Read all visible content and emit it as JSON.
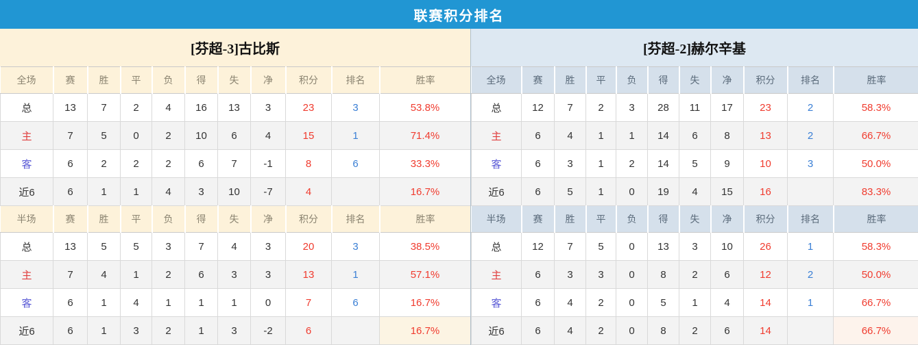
{
  "header": {
    "title": "联赛积分排名"
  },
  "columns": [
    "赛",
    "胜",
    "平",
    "负",
    "得",
    "失",
    "净",
    "积分",
    "排名",
    "胜率"
  ],
  "colors": {
    "topbar_blue": "#2196d3",
    "left_theme_cream": "#fdf2da",
    "right_theme_blue": "#dde8f2",
    "points_red": "#f03b2e",
    "rank_blue": "#3a7fd5",
    "home_label_red": "#e03e3e",
    "away_label_blue": "#5b5bd6"
  },
  "tables": [
    {
      "title": "[芬超-3]古比斯",
      "sections": [
        {
          "label": "全场",
          "rows": [
            {
              "label": "总",
              "type": "total",
              "stats": [
                "13",
                "7",
                "2",
                "4",
                "16",
                "13",
                "3"
              ],
              "points": "23",
              "rank": "3",
              "rate": "53.8%"
            },
            {
              "label": "主",
              "type": "home",
              "stats": [
                "7",
                "5",
                "0",
                "2",
                "10",
                "6",
                "4"
              ],
              "points": "15",
              "rank": "1",
              "rate": "71.4%"
            },
            {
              "label": "客",
              "type": "away",
              "stats": [
                "6",
                "2",
                "2",
                "2",
                "6",
                "7",
                "-1"
              ],
              "points": "8",
              "rank": "6",
              "rate": "33.3%"
            },
            {
              "label": "近6",
              "type": "recent6",
              "stats": [
                "6",
                "1",
                "1",
                "4",
                "3",
                "10",
                "-7"
              ],
              "points": "4",
              "rank": "",
              "rate": "16.7%"
            }
          ]
        },
        {
          "label": "半场",
          "rows": [
            {
              "label": "总",
              "type": "total",
              "stats": [
                "13",
                "5",
                "5",
                "3",
                "7",
                "4",
                "3"
              ],
              "points": "20",
              "rank": "3",
              "rate": "38.5%"
            },
            {
              "label": "主",
              "type": "home",
              "stats": [
                "7",
                "4",
                "1",
                "2",
                "6",
                "3",
                "3"
              ],
              "points": "13",
              "rank": "1",
              "rate": "57.1%"
            },
            {
              "label": "客",
              "type": "away",
              "stats": [
                "6",
                "1",
                "4",
                "1",
                "1",
                "1",
                "0"
              ],
              "points": "7",
              "rank": "6",
              "rate": "16.7%"
            },
            {
              "label": "近6",
              "type": "recent6",
              "stats": [
                "6",
                "1",
                "3",
                "2",
                "1",
                "3",
                "-2"
              ],
              "points": "6",
              "rank": "",
              "rate": "16.7%",
              "rate_highlight": true
            }
          ]
        }
      ]
    },
    {
      "title": "[芬超-2]赫尔辛基",
      "sections": [
        {
          "label": "全场",
          "rows": [
            {
              "label": "总",
              "type": "total",
              "stats": [
                "12",
                "7",
                "2",
                "3",
                "28",
                "11",
                "17"
              ],
              "points": "23",
              "rank": "2",
              "rate": "58.3%"
            },
            {
              "label": "主",
              "type": "home",
              "stats": [
                "6",
                "4",
                "1",
                "1",
                "14",
                "6",
                "8"
              ],
              "points": "13",
              "rank": "2",
              "rate": "66.7%"
            },
            {
              "label": "客",
              "type": "away",
              "stats": [
                "6",
                "3",
                "1",
                "2",
                "14",
                "5",
                "9"
              ],
              "points": "10",
              "rank": "3",
              "rate": "50.0%"
            },
            {
              "label": "近6",
              "type": "recent6",
              "stats": [
                "6",
                "5",
                "1",
                "0",
                "19",
                "4",
                "15"
              ],
              "points": "16",
              "rank": "",
              "rate": "83.3%"
            }
          ]
        },
        {
          "label": "半场",
          "rows": [
            {
              "label": "总",
              "type": "total",
              "stats": [
                "12",
                "7",
                "5",
                "0",
                "13",
                "3",
                "10"
              ],
              "points": "26",
              "rank": "1",
              "rate": "58.3%"
            },
            {
              "label": "主",
              "type": "home",
              "stats": [
                "6",
                "3",
                "3",
                "0",
                "8",
                "2",
                "6"
              ],
              "points": "12",
              "rank": "2",
              "rate": "50.0%"
            },
            {
              "label": "客",
              "type": "away",
              "stats": [
                "6",
                "4",
                "2",
                "0",
                "5",
                "1",
                "4"
              ],
              "points": "14",
              "rank": "1",
              "rate": "66.7%"
            },
            {
              "label": "近6",
              "type": "recent6",
              "stats": [
                "6",
                "4",
                "2",
                "0",
                "8",
                "2",
                "6"
              ],
              "points": "14",
              "rank": "",
              "rate": "66.7%",
              "rate_highlight": true
            }
          ]
        }
      ]
    }
  ]
}
